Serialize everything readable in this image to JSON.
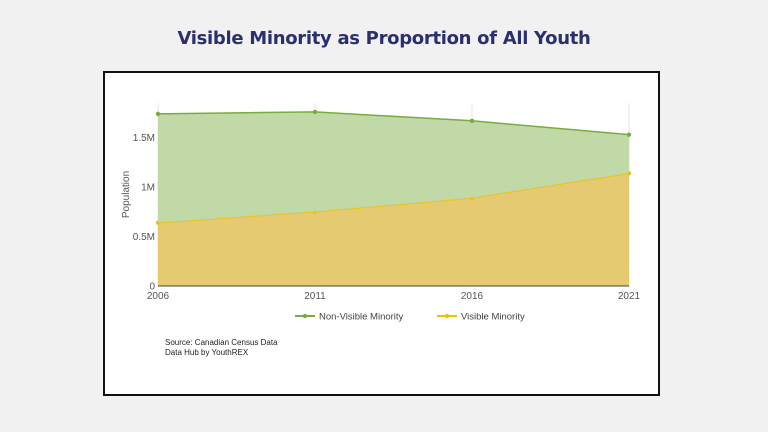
{
  "title": "Visible Minority as Proportion of All Youth",
  "source": {
    "line1": "Source: Canadian Census Data",
    "line2": "Data Hub by YouthREX"
  },
  "colors": {
    "non_visible": "#7aab3e",
    "non_visible_fill": "#bcd69f",
    "visible": "#f2c200",
    "visible_fill": "#e4c666",
    "page_bg": "#f1f1f1",
    "title": "#2b2f6e"
  },
  "chart_data": {
    "type": "area",
    "stacked": true,
    "x": [
      "2006",
      "2011",
      "2016",
      "2021"
    ],
    "xlabel": "",
    "ylabel": "Population",
    "ylim": [
      0,
      1850000
    ],
    "yticks": [
      {
        "value": 0,
        "label": "0"
      },
      {
        "value": 500000,
        "label": "0.5M"
      },
      {
        "value": 1000000,
        "label": "1M"
      },
      {
        "value": 1500000,
        "label": "1.5M"
      }
    ],
    "grid": true,
    "legend_position": "bottom",
    "series": [
      {
        "name": "Non-Visible Minority",
        "values": [
          1100000,
          1010000,
          780000,
          390000
        ],
        "color": "#7aab3e",
        "fill": "#bcd69f"
      },
      {
        "name": "Visible Minority",
        "values": [
          640000,
          750000,
          890000,
          1140000
        ],
        "color": "#f2c200",
        "fill": "#e4c666"
      }
    ]
  }
}
